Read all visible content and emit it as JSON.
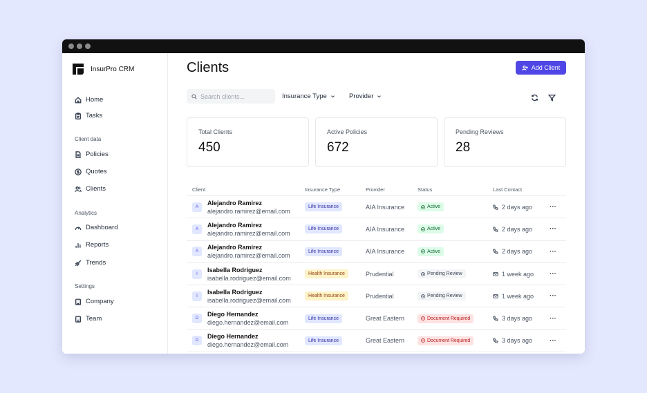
{
  "app": {
    "name": "InsurPro CRM"
  },
  "sidebar": {
    "primary": [
      {
        "label": "Home",
        "icon": "home-icon"
      },
      {
        "label": "Tasks",
        "icon": "clipboard-icon"
      }
    ],
    "sections": [
      {
        "title": "Client data",
        "items": [
          {
            "label": "Policies",
            "icon": "file-icon"
          },
          {
            "label": "Quotes",
            "icon": "dollar-icon"
          },
          {
            "label": "Clients",
            "icon": "users-icon"
          }
        ]
      },
      {
        "title": "Analytics",
        "items": [
          {
            "label": "Dashboard",
            "icon": "gauge-icon"
          },
          {
            "label": "Reports",
            "icon": "bar-chart-icon"
          },
          {
            "label": "Trends",
            "icon": "rocket-icon"
          }
        ]
      },
      {
        "title": "Settings",
        "items": [
          {
            "label": "Company",
            "icon": "building-icon"
          },
          {
            "label": "Team",
            "icon": "building-icon"
          }
        ]
      }
    ]
  },
  "header": {
    "title": "Clients",
    "add_button": "Add Client"
  },
  "filters": {
    "search_placeholder": "Search clients...",
    "insurance_type": "Insurance Type",
    "provider": "Provider"
  },
  "stats": [
    {
      "label": "Total Clients",
      "value": "450"
    },
    {
      "label": "Active Policies",
      "value": "672"
    },
    {
      "label": "Pending Reviews",
      "value": "28"
    }
  ],
  "table": {
    "columns": [
      "Client",
      "Insurance Type",
      "Provider",
      "Status",
      "Last Contact"
    ],
    "rows": [
      {
        "initial": "A",
        "name": "Alejandro Ramirez",
        "email": "alejandro.ramirez@email.com",
        "type": "Life Insurance",
        "type_kind": "life",
        "provider": "AIA Insurance",
        "status": "Active",
        "status_kind": "active",
        "contact": "2 days ago",
        "contact_icon": "phone-icon"
      },
      {
        "initial": "A",
        "name": "Alejandro Ramirez",
        "email": "alejandro.ramirez@email.com",
        "type": "Life Insurance",
        "type_kind": "life",
        "provider": "AIA Insurance",
        "status": "Active",
        "status_kind": "active",
        "contact": "2 days ago",
        "contact_icon": "phone-icon"
      },
      {
        "initial": "A",
        "name": "Alejandro Ramirez",
        "email": "alejandro.ramirez@email.com",
        "type": "Life Insurance",
        "type_kind": "life",
        "provider": "AIA Insurance",
        "status": "Active",
        "status_kind": "active",
        "contact": "2 days ago",
        "contact_icon": "phone-icon"
      },
      {
        "initial": "I",
        "name": "Isabella Rodriguez",
        "email": "isabella.rodriguez@email.com",
        "type": "Health Insurance",
        "type_kind": "health",
        "provider": "Prudential",
        "status": "Pending Review",
        "status_kind": "pending",
        "contact": "1 week ago",
        "contact_icon": "mail-icon"
      },
      {
        "initial": "I",
        "name": "Isabella Rodriguez",
        "email": "isabella.rodriguez@email.com",
        "type": "Health Insurance",
        "type_kind": "health",
        "provider": "Prudential",
        "status": "Pending Review",
        "status_kind": "pending",
        "contact": "1 week ago",
        "contact_icon": "mail-icon"
      },
      {
        "initial": "D",
        "name": "Diego Hernandez",
        "email": "diego.hernandez@email.com",
        "type": "Life Insurance",
        "type_kind": "life",
        "provider": "Great Eastern",
        "status": "Document Required",
        "status_kind": "doc",
        "contact": "3 days ago",
        "contact_icon": "phone-icon"
      },
      {
        "initial": "D",
        "name": "Diego Hernandez",
        "email": "diego.hernandez@email.com",
        "type": "Life Insurance",
        "type_kind": "life",
        "provider": "Great Eastern",
        "status": "Document Required",
        "status_kind": "doc",
        "contact": "3 days ago",
        "contact_icon": "phone-icon"
      }
    ],
    "row_action": "···"
  },
  "colors": {
    "accent": "#4f46e5",
    "background": "#e4e8fe"
  }
}
